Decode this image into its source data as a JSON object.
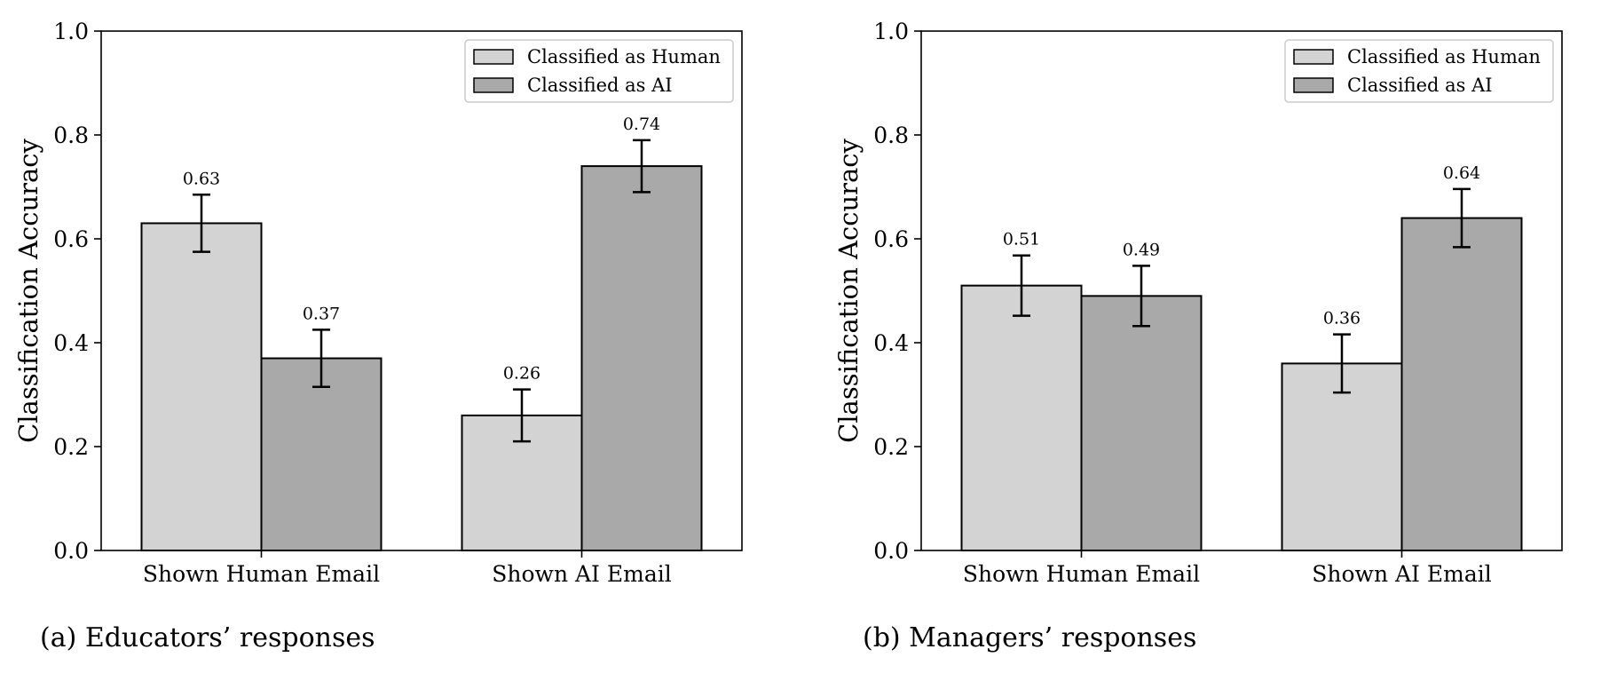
{
  "colors": {
    "human": "#d3d3d3",
    "ai": "#a9a9a9",
    "edge": "#000000"
  },
  "chart_data": [
    {
      "type": "bar",
      "caption": "(a) Educators’ responses",
      "ylabel": "Classification Accuracy",
      "ylim": [
        0,
        1
      ],
      "yticks": [
        "0.0",
        "0.2",
        "0.4",
        "0.6",
        "0.8",
        "1.0"
      ],
      "categories": [
        "Shown Human Email",
        "Shown AI Email"
      ],
      "legend_position": "top-right",
      "series": [
        {
          "name": "Classified as Human",
          "values": [
            0.63,
            0.26
          ],
          "labels": [
            "0.63",
            "0.26"
          ],
          "errors": [
            0.055,
            0.05
          ]
        },
        {
          "name": "Classified as AI",
          "values": [
            0.37,
            0.74
          ],
          "labels": [
            "0.37",
            "0.74"
          ],
          "errors": [
            0.055,
            0.05
          ]
        }
      ]
    },
    {
      "type": "bar",
      "caption": "(b) Managers’ responses",
      "ylabel": "Classification Accuracy",
      "ylim": [
        0,
        1
      ],
      "yticks": [
        "0.0",
        "0.2",
        "0.4",
        "0.6",
        "0.8",
        "1.0"
      ],
      "categories": [
        "Shown Human Email",
        "Shown AI Email"
      ],
      "legend_position": "top-right",
      "series": [
        {
          "name": "Classified as Human",
          "values": [
            0.51,
            0.36
          ],
          "labels": [
            "0.51",
            "0.36"
          ],
          "errors": [
            0.058,
            0.056
          ]
        },
        {
          "name": "Classified as AI",
          "values": [
            0.49,
            0.64
          ],
          "labels": [
            "0.49",
            "0.64"
          ],
          "errors": [
            0.058,
            0.056
          ]
        }
      ]
    }
  ]
}
